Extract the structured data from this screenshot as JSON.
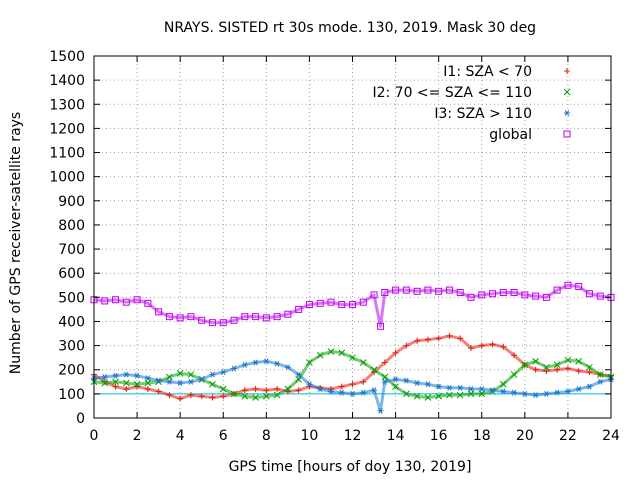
{
  "chart_data": {
    "type": "scatter",
    "title": "NRAYS. SISTED rt 30s mode. 130, 2019. Mask 30 deg",
    "xlabel": "GPS time [hours of doy 130, 2019]",
    "ylabel": "Number of GPS receiver-satellite rays",
    "xlim": [
      0,
      24
    ],
    "ylim": [
      0,
      1500
    ],
    "xticks": [
      0,
      2,
      4,
      6,
      8,
      10,
      12,
      14,
      16,
      18,
      20,
      22,
      24
    ],
    "yticks": [
      0,
      100,
      200,
      300,
      400,
      500,
      600,
      700,
      800,
      900,
      1000,
      1100,
      1200,
      1300,
      1400,
      1500
    ],
    "grid": true,
    "legend_position": "top-right",
    "reference_line": {
      "y": 100,
      "color": "#00bfd8"
    },
    "series": [
      {
        "name": "I1: SZA < 70",
        "marker": "+",
        "color": "#e51e10",
        "points": [
          [
            0,
            180
          ],
          [
            0.5,
            150
          ],
          [
            1,
            130
          ],
          [
            1.5,
            120
          ],
          [
            2,
            130
          ],
          [
            2.5,
            120
          ],
          [
            3,
            110
          ],
          [
            3.5,
            95
          ],
          [
            4,
            80
          ],
          [
            4.5,
            95
          ],
          [
            5,
            90
          ],
          [
            5.5,
            85
          ],
          [
            6,
            90
          ],
          [
            6.5,
            100
          ],
          [
            7,
            115
          ],
          [
            7.5,
            120
          ],
          [
            8,
            115
          ],
          [
            8.5,
            120
          ],
          [
            9,
            110
          ],
          [
            9.5,
            115
          ],
          [
            10,
            130
          ],
          [
            10.5,
            125
          ],
          [
            11,
            120
          ],
          [
            11.5,
            130
          ],
          [
            12,
            140
          ],
          [
            12.5,
            150
          ],
          [
            13,
            190
          ],
          [
            13.5,
            230
          ],
          [
            14,
            270
          ],
          [
            14.5,
            300
          ],
          [
            15,
            320
          ],
          [
            15.5,
            325
          ],
          [
            16,
            330
          ],
          [
            16.5,
            340
          ],
          [
            17,
            330
          ],
          [
            17.5,
            290
          ],
          [
            18,
            300
          ],
          [
            18.5,
            305
          ],
          [
            19,
            295
          ],
          [
            19.5,
            260
          ],
          [
            20,
            220
          ],
          [
            20.5,
            200
          ],
          [
            21,
            195
          ],
          [
            21.5,
            200
          ],
          [
            22,
            205
          ],
          [
            22.5,
            195
          ],
          [
            23,
            190
          ],
          [
            23.5,
            180
          ],
          [
            24,
            175
          ]
        ]
      },
      {
        "name": "I2: 70 <= SZA <= 110",
        "marker": "x",
        "color": "#00a000",
        "points": [
          [
            0,
            150
          ],
          [
            0.5,
            145
          ],
          [
            1,
            150
          ],
          [
            1.5,
            145
          ],
          [
            2,
            140
          ],
          [
            2.5,
            145
          ],
          [
            3,
            150
          ],
          [
            3.5,
            170
          ],
          [
            4,
            185
          ],
          [
            4.5,
            180
          ],
          [
            5,
            160
          ],
          [
            5.5,
            140
          ],
          [
            6,
            120
          ],
          [
            6.5,
            100
          ],
          [
            7,
            90
          ],
          [
            7.5,
            85
          ],
          [
            8,
            90
          ],
          [
            8.5,
            95
          ],
          [
            9,
            120
          ],
          [
            9.5,
            160
          ],
          [
            10,
            230
          ],
          [
            10.5,
            260
          ],
          [
            11,
            275
          ],
          [
            11.5,
            270
          ],
          [
            12,
            250
          ],
          [
            12.5,
            230
          ],
          [
            13,
            200
          ],
          [
            13.5,
            170
          ],
          [
            14,
            130
          ],
          [
            14.5,
            100
          ],
          [
            15,
            90
          ],
          [
            15.5,
            85
          ],
          [
            16,
            90
          ],
          [
            16.5,
            95
          ],
          [
            17,
            95
          ],
          [
            17.5,
            100
          ],
          [
            18,
            100
          ],
          [
            18.5,
            110
          ],
          [
            19,
            140
          ],
          [
            19.5,
            180
          ],
          [
            20,
            220
          ],
          [
            20.5,
            235
          ],
          [
            21,
            210
          ],
          [
            21.5,
            220
          ],
          [
            22,
            240
          ],
          [
            22.5,
            235
          ],
          [
            23,
            210
          ],
          [
            23.5,
            180
          ],
          [
            24,
            170
          ]
        ]
      },
      {
        "name": "I3: SZA > 110",
        "marker": "*",
        "color": "#1a78d0",
        "points": [
          [
            0,
            165
          ],
          [
            0.5,
            170
          ],
          [
            1,
            175
          ],
          [
            1.5,
            180
          ],
          [
            2,
            175
          ],
          [
            2.5,
            165
          ],
          [
            3,
            155
          ],
          [
            3.5,
            150
          ],
          [
            4,
            145
          ],
          [
            4.5,
            150
          ],
          [
            5,
            160
          ],
          [
            5.5,
            180
          ],
          [
            6,
            190
          ],
          [
            6.5,
            205
          ],
          [
            7,
            220
          ],
          [
            7.5,
            230
          ],
          [
            8,
            235
          ],
          [
            8.5,
            225
          ],
          [
            9,
            210
          ],
          [
            9.5,
            180
          ],
          [
            10,
            140
          ],
          [
            10.5,
            120
          ],
          [
            11,
            110
          ],
          [
            11.5,
            105
          ],
          [
            12,
            100
          ],
          [
            12.5,
            105
          ],
          [
            13,
            115
          ],
          [
            13.3,
            30
          ],
          [
            13.5,
            150
          ],
          [
            14,
            160
          ],
          [
            14.5,
            155
          ],
          [
            15,
            145
          ],
          [
            15.5,
            140
          ],
          [
            16,
            130
          ],
          [
            16.5,
            125
          ],
          [
            17,
            125
          ],
          [
            17.5,
            120
          ],
          [
            18,
            120
          ],
          [
            18.5,
            115
          ],
          [
            19,
            110
          ],
          [
            19.5,
            105
          ],
          [
            20,
            100
          ],
          [
            20.5,
            95
          ],
          [
            21,
            100
          ],
          [
            21.5,
            105
          ],
          [
            22,
            110
          ],
          [
            22.5,
            120
          ],
          [
            23,
            130
          ],
          [
            23.5,
            150
          ],
          [
            24,
            160
          ]
        ]
      },
      {
        "name": "global",
        "marker": "square",
        "color": "#c000f0",
        "points": [
          [
            0,
            490
          ],
          [
            0.5,
            485
          ],
          [
            1,
            490
          ],
          [
            1.5,
            480
          ],
          [
            2,
            490
          ],
          [
            2.5,
            475
          ],
          [
            3,
            440
          ],
          [
            3.5,
            420
          ],
          [
            4,
            415
          ],
          [
            4.5,
            420
          ],
          [
            5,
            405
          ],
          [
            5.5,
            395
          ],
          [
            6,
            395
          ],
          [
            6.5,
            405
          ],
          [
            7,
            420
          ],
          [
            7.5,
            420
          ],
          [
            8,
            415
          ],
          [
            8.5,
            420
          ],
          [
            9,
            430
          ],
          [
            9.5,
            450
          ],
          [
            10,
            470
          ],
          [
            10.5,
            475
          ],
          [
            11,
            480
          ],
          [
            11.5,
            470
          ],
          [
            12,
            470
          ],
          [
            12.5,
            480
          ],
          [
            13,
            510
          ],
          [
            13.3,
            380
          ],
          [
            13.5,
            520
          ],
          [
            14,
            530
          ],
          [
            14.5,
            530
          ],
          [
            15,
            525
          ],
          [
            15.5,
            530
          ],
          [
            16,
            525
          ],
          [
            16.5,
            530
          ],
          [
            17,
            520
          ],
          [
            17.5,
            500
          ],
          [
            18,
            510
          ],
          [
            18.5,
            515
          ],
          [
            19,
            520
          ],
          [
            19.5,
            520
          ],
          [
            20,
            510
          ],
          [
            20.5,
            505
          ],
          [
            21,
            500
          ],
          [
            21.5,
            530
          ],
          [
            22,
            550
          ],
          [
            22.5,
            545
          ],
          [
            23,
            515
          ],
          [
            23.5,
            505
          ],
          [
            24,
            500
          ]
        ]
      }
    ]
  }
}
